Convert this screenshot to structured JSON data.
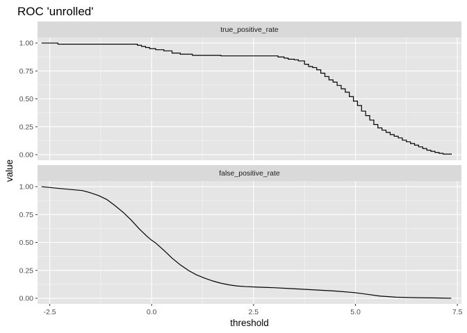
{
  "chart_data": {
    "type": "line",
    "title": "ROC 'unrolled'",
    "xlabel": "threshold",
    "ylabel": "value",
    "xlim": [
      -2.8,
      7.6
    ],
    "ylim": [
      -0.05,
      1.05
    ],
    "x_ticks": [
      -2.5,
      0.0,
      2.5,
      5.0,
      7.5
    ],
    "x_tick_labels": [
      "-2.5",
      "0.0",
      "2.5",
      "5.0",
      "7.5"
    ],
    "y_ticks": [
      0,
      0.25,
      0.5,
      0.75,
      1.0
    ],
    "y_tick_labels": [
      "0.00",
      "0.25",
      "0.50",
      "0.75",
      "1.00"
    ],
    "grid": true,
    "colors": {
      "panel": "#e5e5e5",
      "strip": "#d9d9d9",
      "grid": "#ffffff",
      "line": "#000000"
    },
    "panels": [
      {
        "label": "true_positive_rate",
        "step": true,
        "x": [
          -2.7,
          -2.3,
          -1.5,
          -0.6,
          -0.35,
          -0.25,
          -0.15,
          -0.05,
          0.1,
          0.3,
          0.5,
          0.7,
          1.0,
          1.3,
          1.7,
          2.3,
          2.9,
          3.1,
          3.25,
          3.35,
          3.5,
          3.6,
          3.75,
          3.85,
          3.95,
          4.05,
          4.15,
          4.25,
          4.35,
          4.45,
          4.55,
          4.65,
          4.75,
          4.85,
          4.95,
          5.05,
          5.15,
          5.25,
          5.35,
          5.45,
          5.55,
          5.65,
          5.75,
          5.85,
          5.95,
          6.05,
          6.15,
          6.25,
          6.35,
          6.45,
          6.55,
          6.65,
          6.75,
          6.85,
          6.95,
          7.05,
          7.15,
          7.35
        ],
        "y": [
          1.0,
          0.99,
          0.99,
          0.99,
          0.98,
          0.97,
          0.96,
          0.95,
          0.94,
          0.93,
          0.91,
          0.9,
          0.89,
          0.89,
          0.885,
          0.885,
          0.885,
          0.875,
          0.865,
          0.855,
          0.85,
          0.84,
          0.81,
          0.79,
          0.78,
          0.76,
          0.73,
          0.7,
          0.67,
          0.65,
          0.62,
          0.59,
          0.56,
          0.52,
          0.48,
          0.44,
          0.39,
          0.35,
          0.31,
          0.27,
          0.24,
          0.22,
          0.2,
          0.18,
          0.165,
          0.15,
          0.13,
          0.115,
          0.1,
          0.085,
          0.07,
          0.055,
          0.04,
          0.03,
          0.02,
          0.012,
          0.005,
          0.0
        ]
      },
      {
        "label": "false_positive_rate",
        "step": false,
        "x": [
          -2.7,
          -2.3,
          -2.0,
          -1.7,
          -1.5,
          -1.3,
          -1.1,
          -0.9,
          -0.7,
          -0.5,
          -0.3,
          -0.1,
          0.0,
          0.1,
          0.3,
          0.5,
          0.7,
          0.9,
          1.1,
          1.3,
          1.5,
          1.7,
          1.9,
          2.1,
          2.3,
          2.6,
          3.0,
          3.5,
          4.0,
          4.5,
          5.0,
          5.3,
          5.6,
          6.0,
          6.5,
          7.0,
          7.35
        ],
        "y": [
          1.0,
          0.985,
          0.975,
          0.965,
          0.945,
          0.92,
          0.885,
          0.83,
          0.77,
          0.7,
          0.62,
          0.55,
          0.52,
          0.495,
          0.43,
          0.36,
          0.3,
          0.25,
          0.21,
          0.18,
          0.155,
          0.135,
          0.12,
          0.11,
          0.105,
          0.1,
          0.095,
          0.085,
          0.075,
          0.065,
          0.05,
          0.035,
          0.02,
          0.01,
          0.005,
          0.003,
          0.0
        ]
      }
    ]
  }
}
